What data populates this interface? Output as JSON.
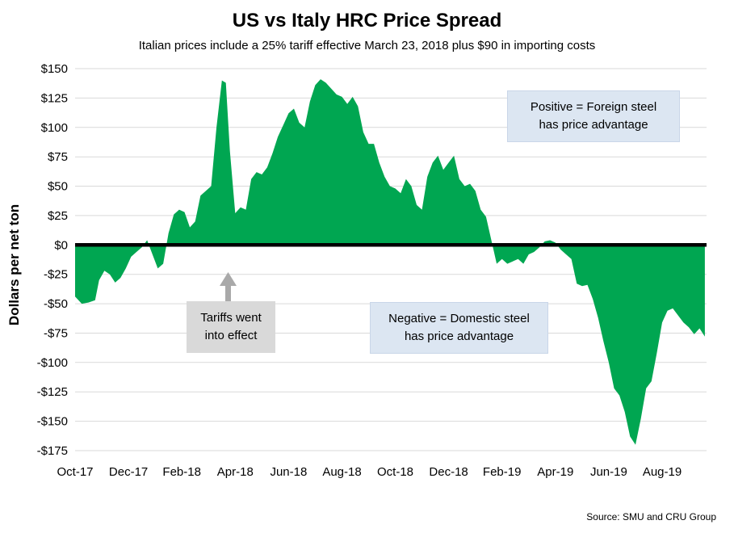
{
  "header": {
    "title": "US vs Italy HRC Price Spread",
    "subtitle": "Italian prices include a 25% tariff effective March 23, 2018 plus $90 in importing costs"
  },
  "annotations": {
    "positive": "Positive = Foreign steel\nhas price advantage",
    "negative": "Negative = Domestic steel\nhas price advantage",
    "tariffs": "Tariffs went\ninto effect"
  },
  "source": "Source: SMU and CRU Group",
  "chart_data": {
    "type": "area",
    "title": "US vs Italy HRC Price Spread",
    "subtitle": "Italian prices include a 25% tariff effective March 23, 2018 plus $90 in importing costs",
    "xlabel": "",
    "ylabel": "Dollars per net ton",
    "ylim": [
      -175,
      150
    ],
    "grid": true,
    "fill_color": "#00a651",
    "zero_line_color": "#000000",
    "gridline_color": "#d9d9d9",
    "arrow_color": "#a9a9a9",
    "y_ticks": [
      {
        "v": 150,
        "label": "$150"
      },
      {
        "v": 125,
        "label": "$125"
      },
      {
        "v": 100,
        "label": "$100"
      },
      {
        "v": 75,
        "label": "$75"
      },
      {
        "v": 50,
        "label": "$50"
      },
      {
        "v": 25,
        "label": "$25"
      },
      {
        "v": 0,
        "label": "$0"
      },
      {
        "v": -25,
        "label": "-$25"
      },
      {
        "v": -50,
        "label": "-$50"
      },
      {
        "v": -75,
        "label": "-$75"
      },
      {
        "v": -100,
        "label": "-$100"
      },
      {
        "v": -125,
        "label": "-$125"
      },
      {
        "v": -150,
        "label": "-$150"
      },
      {
        "v": -175,
        "label": "-$175"
      }
    ],
    "x_ticks": [
      {
        "m": 0,
        "label": "Oct-17"
      },
      {
        "m": 2,
        "label": "Dec-17"
      },
      {
        "m": 4,
        "label": "Feb-18"
      },
      {
        "m": 6,
        "label": "Apr-18"
      },
      {
        "m": 8,
        "label": "Jun-18"
      },
      {
        "m": 10,
        "label": "Aug-18"
      },
      {
        "m": 12,
        "label": "Oct-18"
      },
      {
        "m": 14,
        "label": "Dec-18"
      },
      {
        "m": 16,
        "label": "Feb-19"
      },
      {
        "m": 18,
        "label": "Apr-19"
      },
      {
        "m": 20,
        "label": "Jun-19"
      },
      {
        "m": 22,
        "label": "Aug-19"
      }
    ],
    "x_months_from_oct17": [
      0,
      0.25,
      0.5,
      0.75,
      0.9,
      1.1,
      1.3,
      1.5,
      1.7,
      1.9,
      2.1,
      2.3,
      2.5,
      2.7,
      2.9,
      3.1,
      3.3,
      3.5,
      3.7,
      3.9,
      4.1,
      4.3,
      4.5,
      4.7,
      4.9,
      5.1,
      5.3,
      5.5,
      5.65,
      5.8,
      6,
      6.2,
      6.4,
      6.6,
      6.8,
      7,
      7.2,
      7.4,
      7.6,
      7.8,
      8,
      8.2,
      8.4,
      8.6,
      8.8,
      9,
      9.2,
      9.4,
      9.6,
      9.8,
      10,
      10.2,
      10.4,
      10.6,
      10.8,
      11,
      11.2,
      11.4,
      11.6,
      11.8,
      12,
      12.2,
      12.4,
      12.6,
      12.8,
      13,
      13.2,
      13.4,
      13.6,
      13.8,
      14,
      14.2,
      14.4,
      14.6,
      14.8,
      15,
      15.2,
      15.4,
      15.6,
      15.8,
      16,
      16.2,
      16.4,
      16.6,
      16.8,
      17,
      17.2,
      17.4,
      17.6,
      17.8,
      18,
      18.2,
      18.4,
      18.6,
      18.8,
      19,
      19.2,
      19.4,
      19.6,
      19.8,
      20,
      20.2,
      20.4,
      20.6,
      20.8,
      21,
      21.2,
      21.4,
      21.6,
      21.8,
      22,
      22.2,
      22.4,
      22.6,
      22.8,
      23,
      23.2,
      23.4,
      23.6
    ],
    "values": [
      -44,
      -50,
      -49,
      -47,
      -30,
      -22,
      -25,
      -32,
      -28,
      -20,
      -10,
      -6,
      -2,
      4,
      -8,
      -20,
      -16,
      10,
      26,
      30,
      28,
      15,
      20,
      42,
      46,
      50,
      100,
      140,
      138,
      80,
      27,
      32,
      30,
      56,
      62,
      60,
      66,
      78,
      92,
      102,
      112,
      116,
      104,
      100,
      122,
      136,
      141,
      138,
      133,
      128,
      126,
      120,
      126,
      118,
      96,
      86,
      86,
      70,
      58,
      50,
      48,
      44,
      56,
      50,
      34,
      30,
      58,
      70,
      76,
      64,
      70,
      76,
      56,
      50,
      52,
      46,
      30,
      24,
      4,
      -16,
      -12,
      -16,
      -14,
      -12,
      -16,
      -8,
      -6,
      -2,
      3,
      4,
      2,
      -4,
      -8,
      -12,
      -33,
      -35,
      -34,
      -46,
      -62,
      -82,
      -100,
      -122,
      -128,
      -142,
      -163,
      -170,
      -148,
      -122,
      -116,
      -92,
      -66,
      -56,
      -54,
      -60,
      -66,
      -70,
      -76,
      -71,
      -78
    ]
  }
}
